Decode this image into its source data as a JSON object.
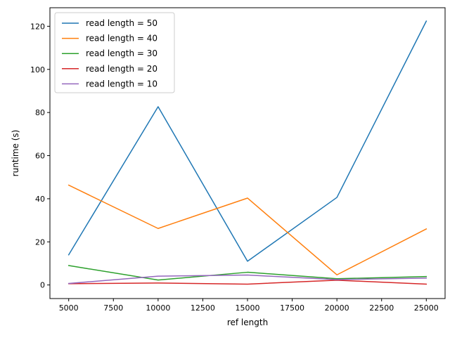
{
  "chart_data": {
    "type": "line",
    "xlabel": "ref length",
    "ylabel": "runtime (s)",
    "xlim": [
      3950,
      26050
    ],
    "ylim": [
      -6.3,
      128.6
    ],
    "x_ticks": [
      5000,
      7500,
      10000,
      12500,
      15000,
      17500,
      20000,
      22500,
      25000
    ],
    "x_tick_labels": [
      "5000",
      "7500",
      "10000",
      "12500",
      "15000",
      "17500",
      "20000",
      "22500",
      "25000"
    ],
    "y_ticks": [
      0,
      20,
      40,
      60,
      80,
      100,
      120
    ],
    "y_tick_labels": [
      "0",
      "20",
      "40",
      "60",
      "80",
      "100",
      "120"
    ],
    "grid": false,
    "legend_position": "top-left",
    "x": [
      5000,
      10000,
      15000,
      20000,
      25000
    ],
    "series": [
      {
        "name": "read length = 50",
        "color": "#1f77b4",
        "values": [
          14.0,
          82.7,
          11.0,
          40.6,
          122.4
        ]
      },
      {
        "name": "read length = 40",
        "color": "#ff7f0e",
        "values": [
          46.3,
          26.2,
          40.3,
          4.7,
          26.0
        ]
      },
      {
        "name": "read length = 30",
        "color": "#2ca02c",
        "values": [
          9.0,
          2.3,
          5.9,
          2.9,
          3.9
        ]
      },
      {
        "name": "read length = 20",
        "color": "#d62728",
        "values": [
          0.6,
          0.9,
          0.4,
          2.2,
          0.4
        ]
      },
      {
        "name": "read length = 10",
        "color": "#9467bd",
        "values": [
          0.7,
          4.1,
          4.6,
          2.5,
          3.2
        ]
      }
    ]
  }
}
